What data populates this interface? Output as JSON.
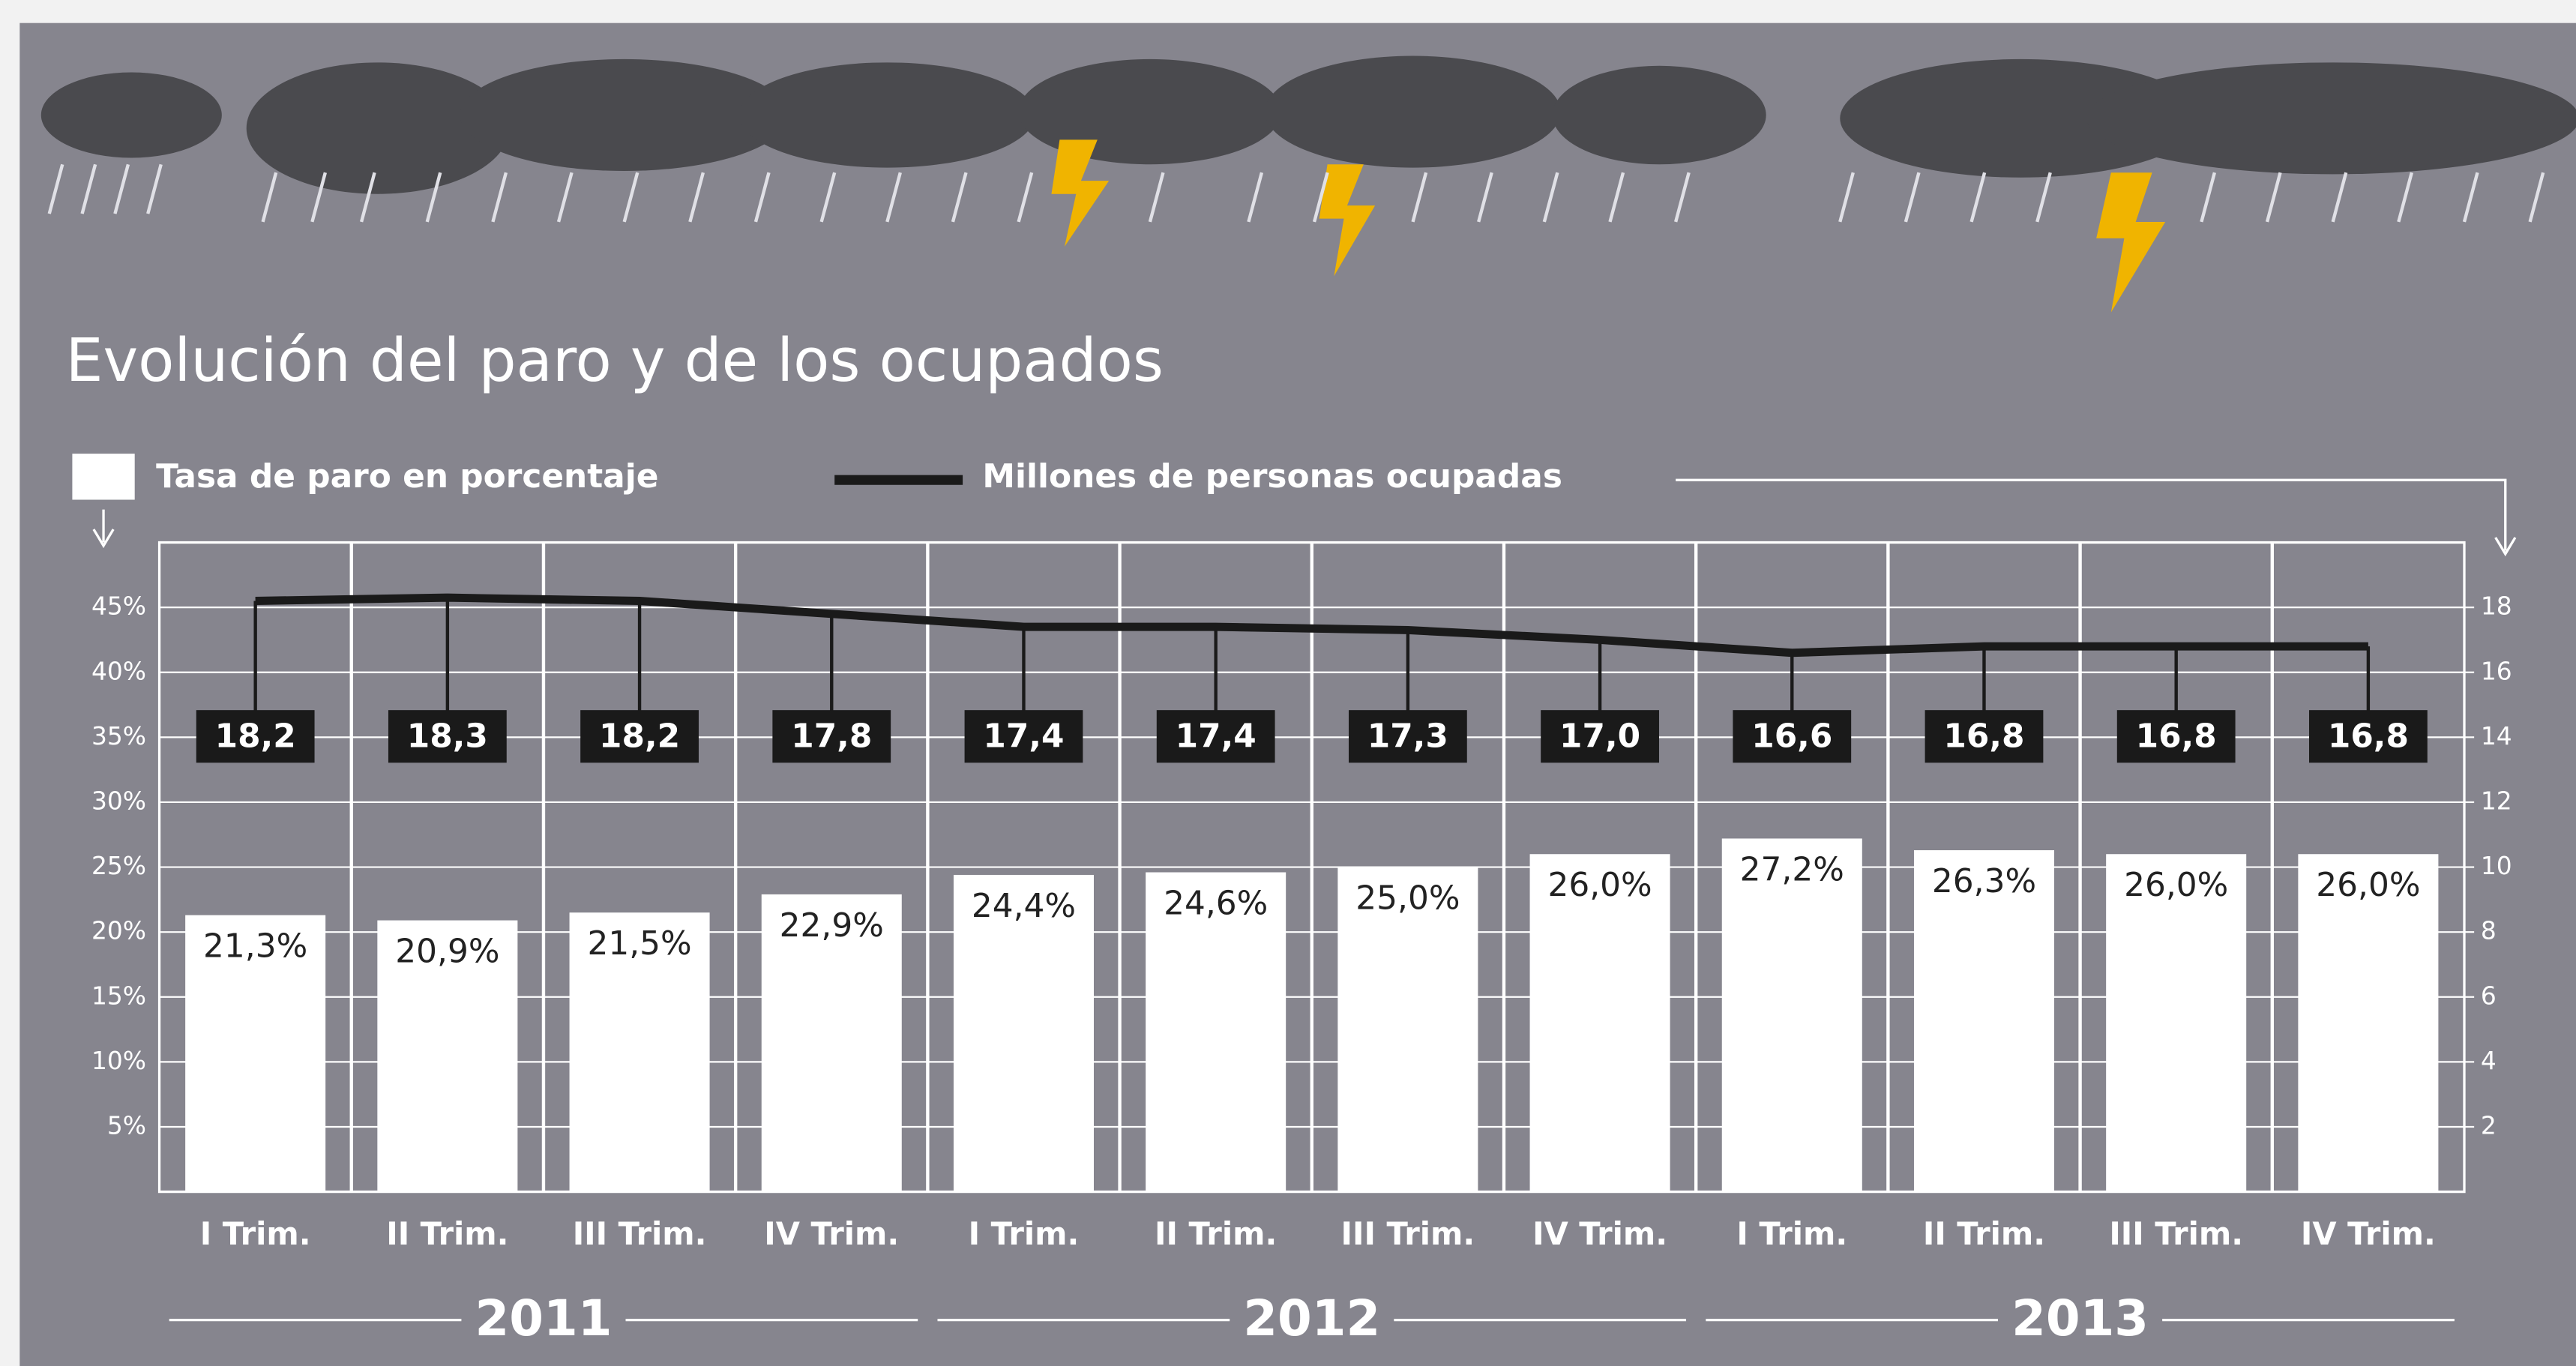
{
  "chart_data": {
    "type": "bar",
    "title": "Evolución del paro y de los ocupados",
    "categories": [
      "I Trim.",
      "II Trim.",
      "III Trim.",
      "IV Trim.",
      "I Trim.",
      "II Trim.",
      "III Trim.",
      "IV Trim.",
      "I Trim.",
      "II Trim.",
      "III Trim.",
      "IV Trim."
    ],
    "year_labels": [
      "2011",
      "2012",
      "2013"
    ],
    "series": [
      {
        "name": "Tasa de paro en porcentaje",
        "type": "bar",
        "color": "#ffffff",
        "values": [
          21.3,
          20.9,
          21.5,
          22.9,
          24.4,
          24.6,
          25.0,
          26.0,
          27.2,
          26.3,
          26.0,
          26.0
        ],
        "value_labels": [
          "21,3%",
          "20,9%",
          "21,5%",
          "22,9%",
          "24,4%",
          "24,6%",
          "25,0%",
          "26,0%",
          "27,2%",
          "26,3%",
          "26,0%",
          "26,0%"
        ]
      },
      {
        "name": "Millones de personas ocupadas",
        "type": "line",
        "axis": "y2",
        "color": "#1a1a1a",
        "values": [
          18.2,
          18.3,
          18.2,
          17.8,
          17.4,
          17.4,
          17.3,
          17.0,
          16.6,
          16.8,
          16.8,
          16.8
        ],
        "value_labels": [
          "18,2",
          "18,3",
          "18,2",
          "17,8",
          "17,4",
          "17,4",
          "17,3",
          "17,0",
          "16,6",
          "16,8",
          "16,8",
          "16,8"
        ]
      }
    ],
    "ylim": [
      0,
      50
    ],
    "yticks": [
      {
        "value": 5,
        "label": "5%"
      },
      {
        "value": 10,
        "label": "10%"
      },
      {
        "value": 15,
        "label": "15%"
      },
      {
        "value": 20,
        "label": "20%"
      },
      {
        "value": 25,
        "label": "25%"
      },
      {
        "value": 30,
        "label": "30%"
      },
      {
        "value": 35,
        "label": "35%"
      },
      {
        "value": 40,
        "label": "40%"
      },
      {
        "value": 45,
        "label": "45%"
      }
    ],
    "y2lim": [
      0,
      20
    ],
    "y2ticks": [
      2,
      4,
      6,
      8,
      10,
      12,
      14,
      16,
      18
    ],
    "grid": true
  }
}
